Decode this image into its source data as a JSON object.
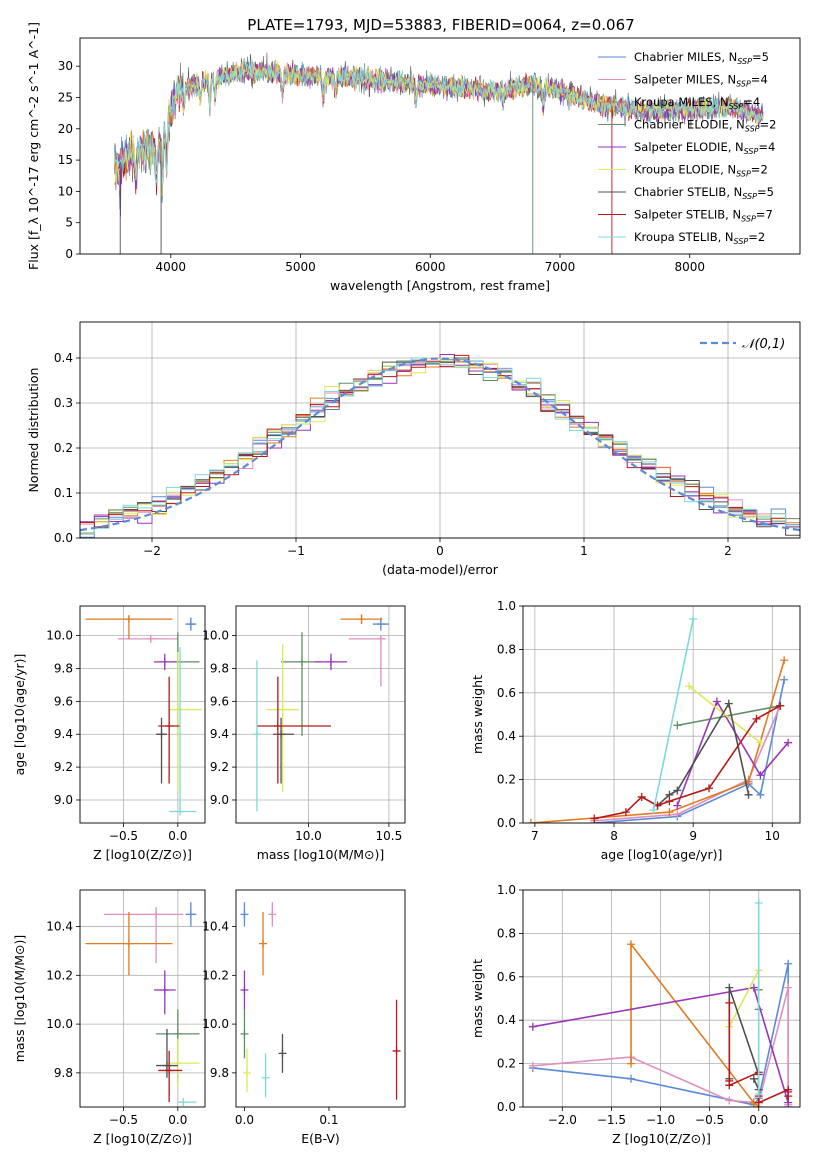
{
  "page_title": "PLATE=1793, MJD=53883, FIBERID=0064, z=0.067",
  "models": [
    {
      "name": "Chabrier MILES",
      "nssp": "5",
      "color": "#5a8ad8"
    },
    {
      "name": "Salpeter MILES",
      "nssp": "4",
      "color": "#e08fbf"
    },
    {
      "name": "Kroupa MILES",
      "nssp": "4",
      "color": "#e07b22"
    },
    {
      "name": "Chabrier ELODIE",
      "nssp": "2",
      "color": "#5e8f66"
    },
    {
      "name": "Salpeter ELODIE",
      "nssp": "4",
      "color": "#9a35b8"
    },
    {
      "name": "Kroupa ELODIE",
      "nssp": "2",
      "color": "#dde85a"
    },
    {
      "name": "Chabrier STELIB",
      "nssp": "5",
      "color": "#505050"
    },
    {
      "name": "Salpeter STELIB",
      "nssp": "7",
      "color": "#b51a1a"
    },
    {
      "name": "Kroupa STELIB",
      "nssp": "2",
      "color": "#7fd9d9"
    }
  ],
  "chart_data": [
    {
      "id": "spectrum",
      "type": "line",
      "title": "PLATE=1793, MJD=53883, FIBERID=0064, z=0.067",
      "xlabel": "wavelength [Angstrom, rest frame]",
      "ylabel": "Flux [f_λ 10^-17 erg cm^-2 s^-1 A^-1]",
      "xlim": [
        3300,
        8850
      ],
      "ylim": [
        0,
        34.5
      ],
      "xticks": [
        4000,
        5000,
        6000,
        7000,
        8000
      ],
      "yticks": [
        0,
        5,
        10,
        15,
        20,
        25,
        30
      ],
      "grid": false,
      "legend": "upper right",
      "continuum": [
        [
          3560,
          14
        ],
        [
          3700,
          16
        ],
        [
          3900,
          17
        ],
        [
          4050,
          26
        ],
        [
          4300,
          28
        ],
        [
          4500,
          29
        ],
        [
          4800,
          29
        ],
        [
          5000,
          28.5
        ],
        [
          5500,
          28
        ],
        [
          6000,
          27
        ],
        [
          6500,
          26
        ],
        [
          6800,
          27
        ],
        [
          7000,
          26
        ],
        [
          7300,
          24
        ],
        [
          7600,
          23
        ],
        [
          8000,
          23
        ],
        [
          8300,
          23.5
        ],
        [
          8560,
          22
        ]
      ]
    },
    {
      "id": "residual-histogram",
      "type": "histogram",
      "xlabel": "(data-model)/error",
      "ylabel": "Normed distribution",
      "xlim": [
        -2.5,
        2.5
      ],
      "ylim": [
        0,
        0.48
      ],
      "xticks": [
        -2,
        -1,
        0,
        1,
        2
      ],
      "yticks": [
        0.0,
        0.1,
        0.2,
        0.3,
        0.4
      ],
      "grid": true,
      "bin_width": 0.1,
      "reference_label": "𝒩(0,1)",
      "reference_color": "#5a8ad8",
      "legend": "upper right"
    },
    {
      "id": "age-vs-Z",
      "type": "errorbar",
      "xlabel": "Z [log10(Z/Z⊙)]",
      "ylabel": "age [log10(age/yr)]",
      "xlim": [
        -0.9,
        0.25
      ],
      "ylim": [
        8.86,
        10.18
      ],
      "xticks": [
        -0.5,
        0.0
      ],
      "yticks": [
        9.0,
        9.2,
        9.4,
        9.6,
        9.8,
        10.0
      ],
      "grid": true,
      "points": [
        {
          "model": 0,
          "x": 0.12,
          "y": 10.07,
          "x_err": [
            0.05,
            0.05
          ],
          "y_err": [
            0.04,
            0.04
          ]
        },
        {
          "model": 1,
          "x": -0.25,
          "y": 9.98,
          "x_err": [
            0.3,
            0.25
          ],
          "y_err": [
            0.02,
            0.02
          ]
        },
        {
          "model": 2,
          "x": -0.45,
          "y": 10.1,
          "x_err": [
            0.4,
            0.4
          ],
          "y_err": [
            0.12,
            0.02
          ]
        },
        {
          "model": 3,
          "x": 0.0,
          "y": 9.84,
          "x_err": [
            0.05,
            0.2
          ],
          "y_err": [
            0.45,
            0.18
          ]
        },
        {
          "model": 4,
          "x": -0.12,
          "y": 9.84,
          "x_err": [
            0.1,
            0.1
          ],
          "y_err": [
            0.05,
            0.05
          ]
        },
        {
          "model": 5,
          "x": 0.0,
          "y": 9.55,
          "x_err": [
            0.08,
            0.22
          ],
          "y_err": [
            0.5,
            0.35
          ]
        },
        {
          "model": 6,
          "x": -0.15,
          "y": 9.4,
          "x_err": [
            0.05,
            0.05
          ],
          "y_err": [
            0.3,
            0.1
          ]
        },
        {
          "model": 7,
          "x": -0.08,
          "y": 9.45,
          "x_err": [
            0.1,
            0.1
          ],
          "y_err": [
            0.35,
            0.3
          ]
        },
        {
          "model": 8,
          "x": 0.02,
          "y": 8.93,
          "x_err": [
            0.1,
            0.15
          ],
          "y_err": [
            0.0,
            1.0
          ]
        }
      ]
    },
    {
      "id": "age-vs-mass",
      "type": "errorbar",
      "xlabel": "mass [log10(M/M⊙)]",
      "ylabel": "",
      "xlim": [
        9.55,
        10.6
      ],
      "ylim": [
        8.86,
        10.18
      ],
      "xticks": [
        10.0,
        10.5
      ],
      "yticks": [
        9.0,
        9.2,
        9.4,
        9.6,
        9.8,
        10.0
      ],
      "grid": true,
      "points": [
        {
          "model": 0,
          "x": 10.45,
          "y": 10.07,
          "x_err": [
            0.05,
            0.05
          ],
          "y_err": [
            0.04,
            0.04
          ]
        },
        {
          "model": 1,
          "x": 10.45,
          "y": 9.98,
          "x_err": [
            0.2,
            0.03
          ],
          "y_err": [
            0.29,
            0.02
          ]
        },
        {
          "model": 2,
          "x": 10.33,
          "y": 10.1,
          "x_err": [
            0.13,
            0.13
          ],
          "y_err": [
            0.03,
            0.03
          ]
        },
        {
          "model": 3,
          "x": 9.96,
          "y": 9.84,
          "x_err": [
            0.13,
            0.12
          ],
          "y_err": [
            0.45,
            0.18
          ]
        },
        {
          "model": 4,
          "x": 10.14,
          "y": 9.84,
          "x_err": [
            0.1,
            0.1
          ],
          "y_err": [
            0.05,
            0.05
          ]
        },
        {
          "model": 5,
          "x": 9.84,
          "y": 9.55,
          "x_err": [
            0.1,
            0.1
          ],
          "y_err": [
            0.5,
            0.4
          ]
        },
        {
          "model": 6,
          "x": 9.83,
          "y": 9.4,
          "x_err": [
            0.05,
            0.08
          ],
          "y_err": [
            0.3,
            0.1
          ]
        },
        {
          "model": 7,
          "x": 9.81,
          "y": 9.45,
          "x_err": [
            0.13,
            0.33
          ],
          "y_err": [
            0.35,
            0.3
          ]
        },
        {
          "model": 8,
          "x": 9.68,
          "y": 9.4,
          "x_err": [
            0.0,
            0.0
          ],
          "y_err": [
            0.47,
            0.45
          ]
        }
      ]
    },
    {
      "id": "mass-weight-vs-age",
      "type": "line",
      "xlabel": "age [log10(age/yr)]",
      "ylabel": "mass weight",
      "xlim": [
        6.85,
        10.35
      ],
      "ylim": [
        0.0,
        1.0
      ],
      "xticks": [
        7,
        8,
        9,
        10
      ],
      "yticks": [
        0.0,
        0.2,
        0.4,
        0.6,
        0.8,
        1.0
      ],
      "grid": true,
      "series": [
        {
          "model": 0,
          "x": [
            7.75,
            8.8,
            9.7,
            9.85,
            10.15
          ],
          "y": [
            0.0,
            0.03,
            0.18,
            0.13,
            0.66
          ]
        },
        {
          "model": 1,
          "x": [
            7.75,
            8.8,
            9.7,
            10.1
          ],
          "y": [
            0.01,
            0.04,
            0.2,
            0.54
          ]
        },
        {
          "model": 2,
          "x": [
            6.95,
            8.7,
            9.7,
            10.15
          ],
          "y": [
            0.0,
            0.05,
            0.19,
            0.75
          ]
        },
        {
          "model": 3,
          "x": [
            8.8,
            10.1
          ],
          "y": [
            0.45,
            0.54
          ]
        },
        {
          "model": 4,
          "x": [
            8.8,
            9.3,
            9.85,
            10.2
          ],
          "y": [
            0.08,
            0.56,
            0.22,
            0.37
          ]
        },
        {
          "model": 5,
          "x": [
            8.95,
            9.85
          ],
          "y": [
            0.63,
            0.37
          ]
        },
        {
          "model": 6,
          "x": [
            8.55,
            8.7,
            8.8,
            9.45,
            9.7
          ],
          "y": [
            0.08,
            0.13,
            0.15,
            0.55,
            0.13
          ]
        },
        {
          "model": 7,
          "x": [
            7.75,
            8.15,
            8.35,
            8.55,
            8.7,
            9.2,
            9.8,
            10.1
          ],
          "y": [
            0.02,
            0.05,
            0.12,
            0.08,
            0.1,
            0.16,
            0.48,
            0.54
          ]
        },
        {
          "model": 8,
          "x": [
            8.5,
            9.0
          ],
          "y": [
            0.06,
            0.94
          ]
        }
      ]
    },
    {
      "id": "mass-vs-Z",
      "type": "errorbar",
      "xlabel": "Z [log10(Z/Z⊙)]",
      "ylabel": "mass [log10(M/M⊙)]",
      "xlim": [
        -0.9,
        0.25
      ],
      "ylim": [
        9.66,
        10.55
      ],
      "xticks": [
        -0.5,
        0.0
      ],
      "yticks": [
        9.8,
        10.0,
        10.2,
        10.4
      ],
      "grid": true,
      "points": [
        {
          "model": 0,
          "x": 0.12,
          "y": 10.45,
          "x_err": [
            0.05,
            0.05
          ],
          "y_err": [
            0.05,
            0.05
          ]
        },
        {
          "model": 1,
          "x": -0.2,
          "y": 10.45,
          "x_err": [
            0.48,
            0.25
          ],
          "y_err": [
            0.2,
            0.03
          ]
        },
        {
          "model": 2,
          "x": -0.45,
          "y": 10.33,
          "x_err": [
            0.4,
            0.4
          ],
          "y_err": [
            0.13,
            0.13
          ]
        },
        {
          "model": 3,
          "x": 0.0,
          "y": 9.96,
          "x_err": [
            0.2,
            0.2
          ],
          "y_err": [
            0.2,
            0.1
          ]
        },
        {
          "model": 4,
          "x": -0.12,
          "y": 10.14,
          "x_err": [
            0.1,
            0.1
          ],
          "y_err": [
            0.1,
            0.08
          ]
        },
        {
          "model": 5,
          "x": 0.0,
          "y": 9.84,
          "x_err": [
            0.1,
            0.2
          ],
          "y_err": [
            0.1,
            0.1
          ]
        },
        {
          "model": 6,
          "x": -0.1,
          "y": 9.83,
          "x_err": [
            0.1,
            0.1
          ],
          "y_err": [
            0.05,
            0.15
          ]
        },
        {
          "model": 7,
          "x": -0.08,
          "y": 9.81,
          "x_err": [
            0.1,
            0.12
          ],
          "y_err": [
            0.13,
            0.08
          ]
        },
        {
          "model": 8,
          "x": 0.05,
          "y": 9.68,
          "x_err": [
            0.05,
            0.12
          ],
          "y_err": [
            0.0,
            0.0
          ]
        }
      ]
    },
    {
      "id": "mass-vs-EBV",
      "type": "errorbar",
      "xlabel": "E(B-V)",
      "ylabel": "",
      "xlim": [
        -0.01,
        0.19
      ],
      "ylim": [
        9.66,
        10.55
      ],
      "xticks": [
        0.0,
        0.1
      ],
      "yticks": [
        9.8,
        10.0,
        10.2,
        10.4
      ],
      "grid": false,
      "points": [
        {
          "model": 0,
          "x": 0.0,
          "y": 10.45,
          "x_err": [
            0,
            0
          ],
          "y_err": [
            0.05,
            0.05
          ]
        },
        {
          "model": 1,
          "x": 0.033,
          "y": 10.45,
          "x_err": [
            0,
            0
          ],
          "y_err": [
            0.05,
            0.05
          ]
        },
        {
          "model": 2,
          "x": 0.022,
          "y": 10.33,
          "x_err": [
            0,
            0
          ],
          "y_err": [
            0.13,
            0.13
          ]
        },
        {
          "model": 3,
          "x": 0.0,
          "y": 9.96,
          "x_err": [
            0,
            0
          ],
          "y_err": [
            0.1,
            0.1
          ]
        },
        {
          "model": 4,
          "x": 0.0,
          "y": 10.14,
          "x_err": [
            0,
            0
          ],
          "y_err": [
            0.08,
            0.08
          ]
        },
        {
          "model": 5,
          "x": 0.003,
          "y": 9.8,
          "x_err": [
            0,
            0
          ],
          "y_err": [
            0.08,
            0.1
          ]
        },
        {
          "model": 6,
          "x": 0.045,
          "y": 9.88,
          "x_err": [
            0,
            0
          ],
          "y_err": [
            0.08,
            0.08
          ]
        },
        {
          "model": 7,
          "x": 0.18,
          "y": 9.89,
          "x_err": [
            0,
            0
          ],
          "y_err": [
            0.2,
            0.21
          ]
        },
        {
          "model": 8,
          "x": 0.025,
          "y": 9.78,
          "x_err": [
            0,
            0
          ],
          "y_err": [
            0.08,
            0.1
          ]
        }
      ]
    },
    {
      "id": "mass-weight-vs-Z",
      "type": "line",
      "xlabel": "Z [log10(Z/Z⊙)]",
      "ylabel": "mass weight",
      "xlim": [
        -2.4,
        0.42
      ],
      "ylim": [
        0.0,
        1.0
      ],
      "xticks": [
        -2.0,
        -1.5,
        -1.0,
        -0.5,
        0.0
      ],
      "yticks": [
        0.0,
        0.2,
        0.4,
        0.6,
        0.8,
        1.0
      ],
      "grid": true,
      "series": [
        {
          "model": 0,
          "x": [
            -2.3,
            -1.3,
            -0.05,
            0.0,
            0.3,
            0.3
          ],
          "y": [
            0.18,
            0.13,
            0.01,
            0.04,
            0.66,
            0.0
          ]
        },
        {
          "model": 1,
          "x": [
            -2.3,
            -1.3,
            -0.3,
            0.0,
            0.3,
            0.3
          ],
          "y": [
            0.19,
            0.23,
            0.03,
            0.02,
            0.55,
            0.01
          ]
        },
        {
          "model": 2,
          "x": [
            -1.3,
            -1.3,
            -0.05,
            0.0,
            -0.05
          ],
          "y": [
            0.2,
            0.75,
            0.02,
            0.0,
            0.02
          ]
        },
        {
          "model": 3,
          "x": [
            0.0,
            0.0
          ],
          "y": [
            0.45,
            0.54
          ]
        },
        {
          "model": 4,
          "x": [
            -2.3,
            -0.05,
            0.3,
            0.3
          ],
          "y": [
            0.37,
            0.55,
            0.02,
            0.07
          ]
        },
        {
          "model": 5,
          "x": [
            -0.3,
            0.0
          ],
          "y": [
            0.37,
            0.63
          ]
        },
        {
          "model": 6,
          "x": [
            -0.3,
            -0.3,
            0.0,
            0.0,
            -0.05
          ],
          "y": [
            0.13,
            0.55,
            0.15,
            0.08,
            0.13
          ]
        },
        {
          "model": 7,
          "x": [
            -0.3,
            -0.3,
            -0.3,
            0.0,
            0.0,
            0.0,
            0.3,
            0.3
          ],
          "y": [
            0.48,
            0.12,
            0.1,
            0.16,
            0.05,
            0.02,
            0.08,
            0.05
          ]
        },
        {
          "model": 8,
          "x": [
            0.0,
            0.0
          ],
          "y": [
            0.06,
            0.94
          ]
        }
      ]
    }
  ]
}
